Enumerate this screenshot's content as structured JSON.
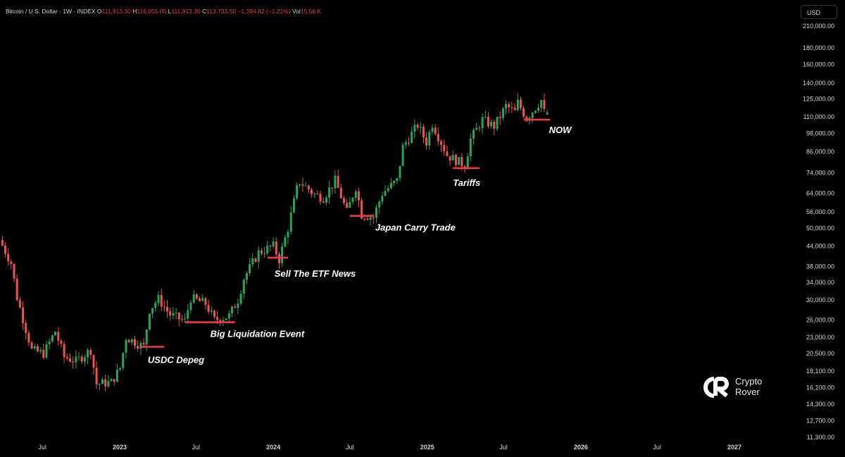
{
  "header": {
    "symbol": "Bitcoin / U.S. Dollar · 1W · INDEX",
    "o_label": "O",
    "o_value": "111,913.30",
    "h_label": "H",
    "h_value": "116,055.05",
    "l_label": "L",
    "l_value": "111,913.30",
    "c_label": "C",
    "c_value": "113,733.50",
    "change": "−1,394.82 (−1.21%)",
    "vol_label": "Vol",
    "vol_value": "15.56 K"
  },
  "currency_button": "USD",
  "brand": {
    "line1": "Crypto",
    "line2": "Rover"
  },
  "colors": {
    "up": "#26a69a",
    "up_body": "#22a85a",
    "down": "#ef5350",
    "marker": "#f23645",
    "background": "#000000"
  },
  "chart_data": {
    "type": "candlestick",
    "title": "Bitcoin / U.S. Dollar · 1W · INDEX",
    "y_scale": "log",
    "ylim": [
      11300,
      210000
    ],
    "y_ticks": [
      "210,000.00",
      "180,000.00",
      "160,000.00",
      "140,000.00",
      "125,000.00",
      "110,000.00",
      "98,000.00",
      "86,000.00",
      "74,000.00",
      "64,000.00",
      "56,000.00",
      "50,000.00",
      "44,000.00",
      "38,000.00",
      "34,000.00",
      "30,000.00",
      "26,000.00",
      "23,000.00",
      "20,500.00",
      "18,100.00",
      "16,100.00",
      "14,300.00",
      "12,700.00",
      "11,300.00"
    ],
    "x_ticks": [
      {
        "label": "Jul",
        "date": "2022-07-01"
      },
      {
        "label": "2023",
        "date": "2023-01-01"
      },
      {
        "label": "Jul",
        "date": "2023-07-01"
      },
      {
        "label": "2024",
        "date": "2024-01-01"
      },
      {
        "label": "Jul",
        "date": "2024-07-01"
      },
      {
        "label": "2025",
        "date": "2025-01-01"
      },
      {
        "label": "Jul",
        "date": "2025-07-01"
      },
      {
        "label": "2026",
        "date": "2026-01-01"
      },
      {
        "label": "Jul",
        "date": "2026-07-01"
      },
      {
        "label": "2027",
        "date": "2027-01-01"
      }
    ],
    "price_path": [
      [
        "2022-03-28",
        46000
      ],
      [
        "2022-04-25",
        39000
      ],
      [
        "2022-05-09",
        30500
      ],
      [
        "2022-06-13",
        21000
      ],
      [
        "2022-07-11",
        20500
      ],
      [
        "2022-08-08",
        24000
      ],
      [
        "2022-08-29",
        20000
      ],
      [
        "2022-09-26",
        19400
      ],
      [
        "2022-10-31",
        21000
      ],
      [
        "2022-11-14",
        16500
      ],
      [
        "2022-12-19",
        16700
      ],
      [
        "2023-01-09",
        18500
      ],
      [
        "2023-01-23",
        23000
      ],
      [
        "2023-03-06",
        21500
      ],
      [
        "2023-03-20",
        28000
      ],
      [
        "2023-04-10",
        30200
      ],
      [
        "2023-05-08",
        27000
      ],
      [
        "2023-06-12",
        25800
      ],
      [
        "2023-06-26",
        30400
      ],
      [
        "2023-07-31",
        29200
      ],
      [
        "2023-08-21",
        26000
      ],
      [
        "2023-09-25",
        26800
      ],
      [
        "2023-10-16",
        30000
      ],
      [
        "2023-10-30",
        35000
      ],
      [
        "2023-12-04",
        42000
      ],
      [
        "2024-01-08",
        44000
      ],
      [
        "2024-01-22",
        40000
      ],
      [
        "2024-02-12",
        50000
      ],
      [
        "2024-03-04",
        66000
      ],
      [
        "2024-03-11",
        69500
      ],
      [
        "2024-04-15",
        63500
      ],
      [
        "2024-05-06",
        62000
      ],
      [
        "2024-06-03",
        70000
      ],
      [
        "2024-07-01",
        56000
      ],
      [
        "2024-07-22",
        67000
      ],
      [
        "2024-08-05",
        55000
      ],
      [
        "2024-09-02",
        54000
      ],
      [
        "2024-09-23",
        64000
      ],
      [
        "2024-10-28",
        70000
      ],
      [
        "2024-11-11",
        89000
      ],
      [
        "2024-12-16",
        104000
      ],
      [
        "2025-01-06",
        92000
      ],
      [
        "2025-01-20",
        105000
      ],
      [
        "2025-02-24",
        84000
      ],
      [
        "2025-04-07",
        78000
      ],
      [
        "2025-04-21",
        94000
      ],
      [
        "2025-05-19",
        108000
      ],
      [
        "2025-06-16",
        103000
      ],
      [
        "2025-07-14",
        119000
      ],
      [
        "2025-08-04",
        114000
      ],
      [
        "2025-08-11",
        122000
      ],
      [
        "2025-09-01",
        109000
      ],
      [
        "2025-10-06",
        124000
      ],
      [
        "2025-10-13",
        113733
      ]
    ],
    "last_candle": {
      "open": 111913.3,
      "high": 116055.05,
      "low": 111913.3,
      "close": 113733.5,
      "change": "−1,394.82 (−1.21%)",
      "volume": "15.56 K"
    },
    "annotations": [
      {
        "label": "USDC Depeg",
        "level": 21500,
        "start": "2023-02-20",
        "end": "2023-04-17"
      },
      {
        "label": "Big Liquidation Event",
        "level": 25600,
        "start": "2023-06-05",
        "end": "2023-10-02"
      },
      {
        "label": "Sell The ETF News",
        "level": 40500,
        "start": "2023-12-18",
        "end": "2024-02-05"
      },
      {
        "label": "Japan Carry Trade",
        "level": 54500,
        "start": "2024-07-01",
        "end": "2024-08-26"
      },
      {
        "label": "Tariffs",
        "level": 76500,
        "start": "2025-03-03",
        "end": "2025-05-05"
      },
      {
        "label": "NOW",
        "level": 108000,
        "start": "2025-08-18",
        "end": "2025-10-20"
      }
    ]
  }
}
